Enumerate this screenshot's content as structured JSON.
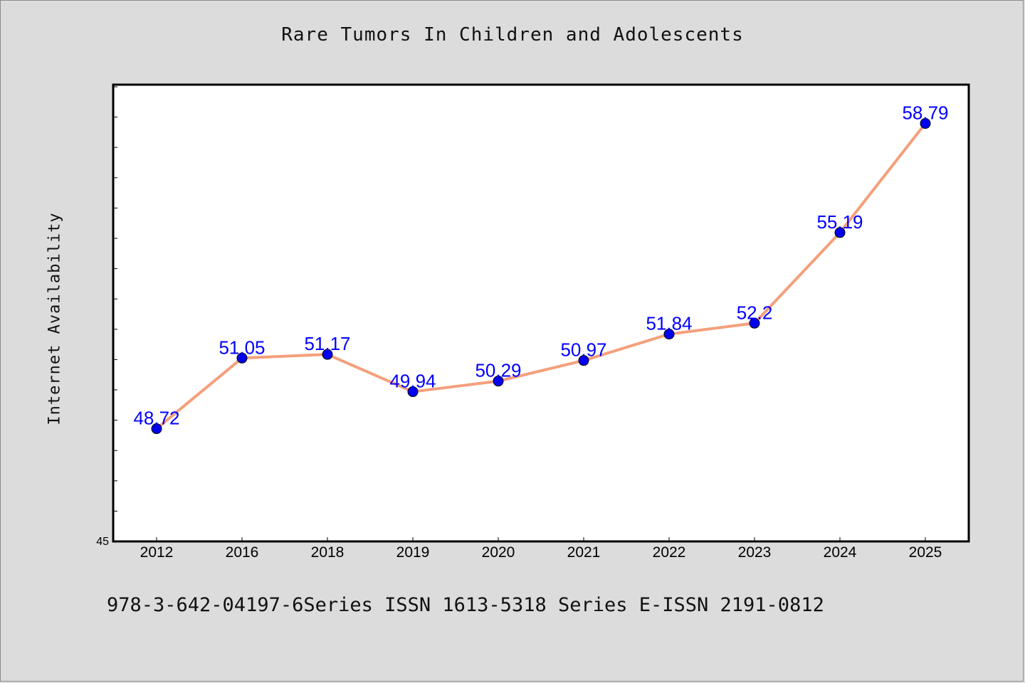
{
  "title": "Rare Tumors In Children and Adolescents",
  "ylabel": "Internet Availability",
  "footer": "978-3-642-04197-6Series ISSN 1613-5318 Series E-ISSN 2191-0812",
  "colors": {
    "background": "#dcdcdc",
    "plot_area": "#ffffff",
    "line": "#f4a07c",
    "marker": "#0000ee",
    "data_label": "#0000ff"
  },
  "chart_data": {
    "type": "line",
    "title": "Rare Tumors In Children and Adolescents",
    "xlabel": "",
    "ylabel": "Internet Availability",
    "categories": [
      "2012",
      "2016",
      "2018",
      "2019",
      "2020",
      "2021",
      "2022",
      "2023",
      "2024",
      "2025"
    ],
    "series": [
      {
        "values": [
          48.72,
          51.05,
          51.17,
          49.94,
          50.29,
          50.97,
          51.84,
          52.2,
          55.19,
          58.79
        ],
        "labels": [
          "48.72",
          "51.05",
          "51.17",
          "49.94",
          "50.29",
          "50.97",
          "51.84",
          "52.2",
          "55.19",
          "58.79"
        ]
      }
    ],
    "ylim": [
      45,
      60
    ],
    "y_tick_labels": [
      "45"
    ],
    "grid": false,
    "legend": "none"
  }
}
